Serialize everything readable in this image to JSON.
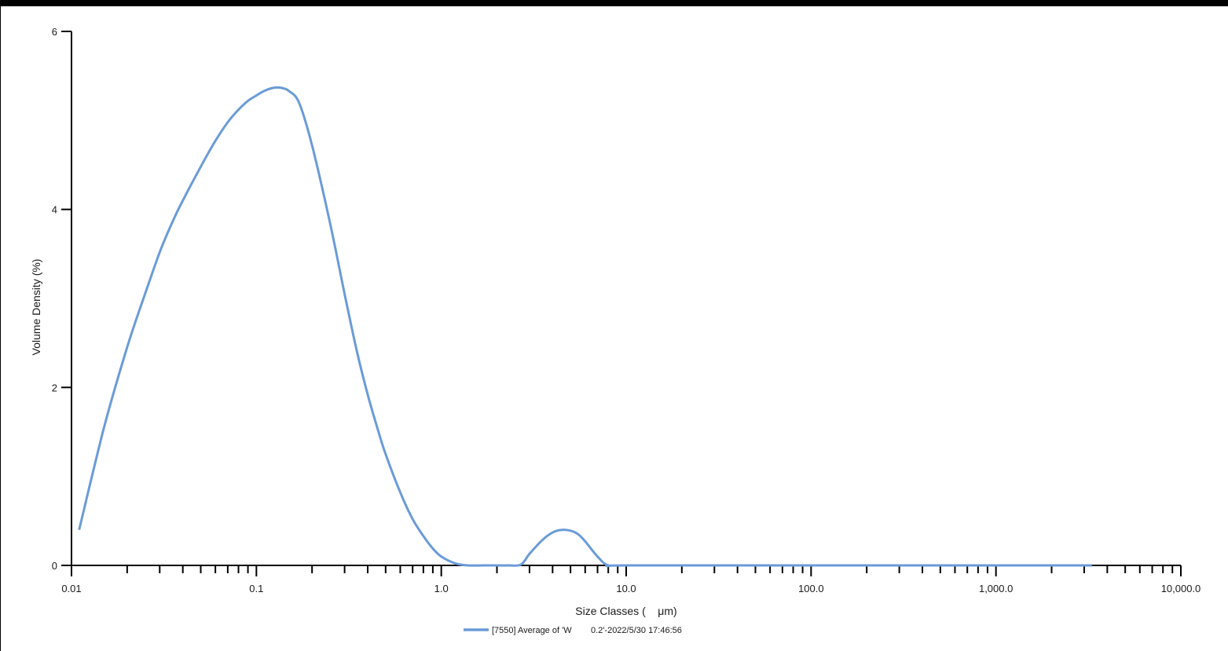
{
  "chart_data": {
    "type": "line",
    "xlabel": "Size Classes (    μm)",
    "ylabel": "Volume Density (%)",
    "xscale": "log",
    "xlim": [
      0.01,
      10000
    ],
    "ylim": [
      0,
      6
    ],
    "grid": false,
    "legend_position": "bottom-center",
    "x_tick_labels": [
      {
        "value": 0.01,
        "label": "0.01"
      },
      {
        "value": 0.1,
        "label": "0.1"
      },
      {
        "value": 1,
        "label": "1.0"
      },
      {
        "value": 10,
        "label": "10.0"
      },
      {
        "value": 100,
        "label": "100.0"
      },
      {
        "value": 1000,
        "label": "1,000.0"
      },
      {
        "value": 10000,
        "label": "10,000.0"
      }
    ],
    "y_tick_labels": [
      {
        "value": 0,
        "label": "0"
      },
      {
        "value": 2,
        "label": "2"
      },
      {
        "value": 4,
        "label": "4"
      },
      {
        "value": 6,
        "label": "6"
      }
    ],
    "series": [
      {
        "name": "[7550] Average of 'W        0.2'-2022/5/30 17:46:56",
        "color": "#6a9bd8",
        "x": [
          0.011,
          0.015,
          0.02,
          0.025,
          0.03,
          0.035,
          0.04,
          0.05,
          0.06,
          0.07,
          0.08,
          0.09,
          0.1,
          0.11,
          0.12,
          0.13,
          0.14,
          0.15,
          0.17,
          0.2,
          0.25,
          0.3,
          0.35,
          0.4,
          0.45,
          0.5,
          0.6,
          0.7,
          0.8,
          0.9,
          1.0,
          1.2,
          1.4,
          1.7,
          2.0,
          2.3,
          2.7,
          3.0,
          3.5,
          4.0,
          4.5,
          5.0,
          5.5,
          6.0,
          7.0,
          8.0,
          10,
          100,
          1000,
          3300
        ],
        "y": [
          0.4,
          1.55,
          2.45,
          3.05,
          3.52,
          3.85,
          4.1,
          4.48,
          4.77,
          4.98,
          5.12,
          5.22,
          5.28,
          5.33,
          5.36,
          5.37,
          5.36,
          5.33,
          5.2,
          4.72,
          3.85,
          3.05,
          2.4,
          1.92,
          1.55,
          1.25,
          0.82,
          0.52,
          0.33,
          0.19,
          0.1,
          0.02,
          0.0,
          0.0,
          0.0,
          0.0,
          0.01,
          0.13,
          0.28,
          0.37,
          0.4,
          0.39,
          0.35,
          0.27,
          0.1,
          0.0,
          0.0,
          0.0,
          0.0,
          0.0
        ]
      }
    ]
  }
}
